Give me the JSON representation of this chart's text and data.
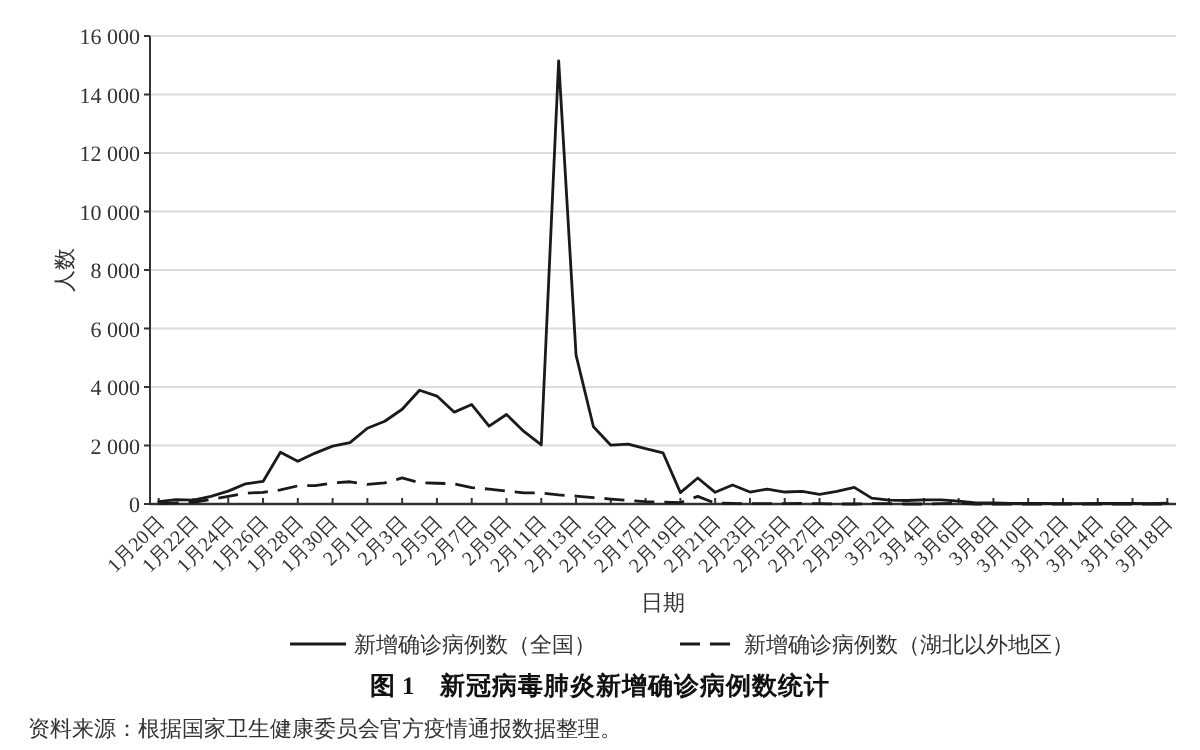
{
  "chart_data": {
    "type": "line",
    "title": "图 1　新冠病毒肺炎新增确诊病例数统计",
    "xlabel": "日期",
    "ylabel": "人数",
    "annotations": [
      "资料来源：根据国家卫生健康委员会官方疫情通报数据整理。"
    ],
    "categories": [
      "1月20日",
      null,
      "1月22日",
      null,
      "1月24日",
      null,
      "1月26日",
      null,
      "1月28日",
      null,
      "1月30日",
      null,
      "2月1日",
      null,
      "2月3日",
      null,
      "2月5日",
      null,
      "2月7日",
      null,
      "2月9日",
      null,
      "2月11日",
      null,
      "2月13日",
      null,
      "2月15日",
      null,
      "2月17日",
      null,
      "2月19日",
      null,
      "2月21日",
      null,
      "2月23日",
      null,
      "2月25日",
      null,
      "2月27日",
      null,
      "2月29日",
      null,
      "3月2日",
      null,
      "3月4日",
      null,
      "3月6日",
      null,
      "3月8日",
      null,
      "3月10日",
      null,
      "3月12日",
      null,
      "3月14日",
      null,
      "3月16日",
      null,
      "3月18日"
    ],
    "series": [
      {
        "name": "新增确诊病例数（全国）",
        "color": "#1a1a1a",
        "line_style": "solid",
        "values": [
          80,
          150,
          130,
          260,
          440,
          690,
          770,
          1770,
          1460,
          1740,
          1980,
          2100,
          2590,
          2830,
          3240,
          3890,
          3690,
          3140,
          3400,
          2660,
          3060,
          2480,
          2020,
          15150,
          5090,
          2640,
          2010,
          2050,
          1890,
          1750,
          390,
          890,
          400,
          650,
          410,
          510,
          410,
          430,
          330,
          430,
          570,
          200,
          130,
          120,
          140,
          140,
          100,
          40,
          40,
          20,
          20,
          20,
          10,
          10,
          20,
          20,
          20,
          10,
          30
        ]
      },
      {
        "name": "新增确诊病例数（湖北以外地区）",
        "color": "#1a1a1a",
        "line_style": "dashed",
        "values": [
          10,
          40,
          60,
          150,
          260,
          370,
          400,
          480,
          620,
          630,
          720,
          760,
          670,
          720,
          890,
          730,
          710,
          690,
          560,
          510,
          440,
          380,
          380,
          310,
          270,
          220,
          170,
          120,
          80,
          60,
          50,
          260,
          30,
          20,
          10,
          10,
          10,
          20,
          10,
          0,
          0,
          10,
          10,
          0,
          0,
          10,
          30,
          0,
          0,
          0,
          0,
          0,
          0,
          0,
          0,
          0,
          0,
          0,
          0
        ]
      }
    ],
    "ylim": [
      0,
      16000
    ],
    "yticks": [
      0,
      {
        "value": 2000,
        "label": "2 000"
      },
      {
        "value": 4000,
        "label": "4 000"
      },
      {
        "value": 6000,
        "label": "6 000"
      },
      {
        "value": 8000,
        "label": "8 000"
      },
      {
        "value": 10000,
        "label": "10 000"
      },
      {
        "value": 12000,
        "label": "12 000"
      },
      {
        "value": 14000,
        "label": "14 000"
      },
      {
        "value": 16000,
        "label": "16 000"
      }
    ],
    "grid": "y",
    "legend": "bottom"
  }
}
